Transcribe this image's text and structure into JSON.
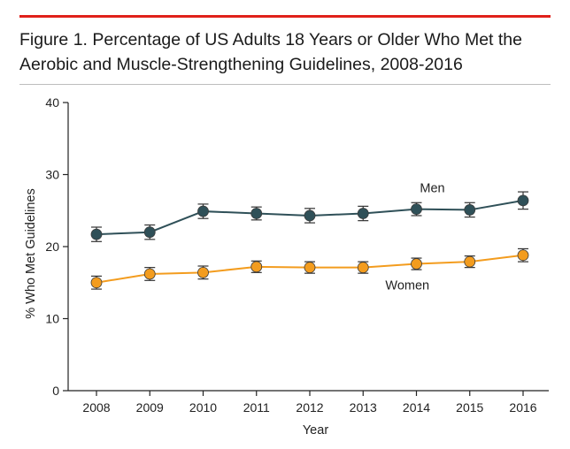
{
  "chart_data": {
    "type": "line",
    "title": "Figure 1. Percentage of US Adults 18 Years or Older Who Met the Aerobic and Muscle-Strengthening Guidelines, 2008-2016",
    "xlabel": "Year",
    "ylabel": "% Who Met Guidelines",
    "x": [
      "2008",
      "2009",
      "2010",
      "2011",
      "2012",
      "2013",
      "2014",
      "2015",
      "2016"
    ],
    "ylim": [
      0,
      40
    ],
    "yticks": [
      0,
      10,
      20,
      30,
      40
    ],
    "grid": false,
    "legend": "inline labels",
    "series": [
      {
        "name": "Men",
        "color": "#2f5058",
        "values": [
          21.7,
          22.0,
          24.9,
          24.6,
          24.3,
          24.6,
          25.2,
          25.1,
          26.4
        ],
        "ci_low": [
          20.7,
          21.0,
          23.9,
          23.7,
          23.3,
          23.6,
          24.3,
          24.1,
          25.2
        ],
        "ci_high": [
          22.7,
          23.0,
          25.9,
          25.5,
          25.3,
          25.6,
          26.1,
          26.1,
          27.6
        ]
      },
      {
        "name": "Women",
        "color": "#f39c1e",
        "values": [
          15.0,
          16.2,
          16.4,
          17.2,
          17.1,
          17.1,
          17.6,
          17.9,
          18.8
        ],
        "ci_low": [
          14.1,
          15.3,
          15.5,
          16.4,
          16.3,
          16.3,
          16.8,
          17.1,
          17.9
        ],
        "ci_high": [
          15.9,
          17.1,
          17.3,
          18.0,
          17.9,
          17.9,
          18.4,
          18.7,
          19.7
        ]
      }
    ]
  },
  "colors": {
    "accent_rule": "#e0201a",
    "axis": "#222222"
  }
}
